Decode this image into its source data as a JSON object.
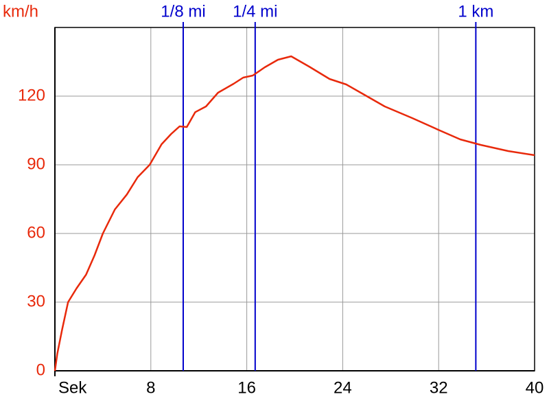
{
  "chart_data": {
    "type": "line",
    "y_label": "km/h",
    "x": [
      0,
      0.2,
      0.6,
      1.1,
      1.8,
      2.6,
      3.3,
      4.0,
      5.0,
      6.0,
      6.9,
      7.9,
      8.9,
      9.7,
      10.4,
      11.0,
      11.7,
      12.6,
      13.6,
      14.9,
      15.7,
      16.5,
      17.5,
      18.6,
      19.7,
      21.2,
      22.9,
      24.3,
      25.8,
      27.5,
      29.8,
      32.1,
      33.8,
      35.5,
      37.8,
      40
    ],
    "series": [
      {
        "name": "km/h",
        "color": "#e8290b",
        "values": [
          0,
          7.5,
          18,
          30,
          36,
          42,
          50.4,
          60,
          70.5,
          77,
          84.6,
          90,
          99,
          103.5,
          106.8,
          106.5,
          113,
          115.5,
          121.5,
          125.4,
          128.1,
          129,
          132.6,
          135.9,
          137.4,
          132.9,
          127.5,
          125.1,
          120.6,
          115.5,
          110.4,
          105,
          101.1,
          98.7,
          96,
          94.2
        ]
      }
    ],
    "markers": [
      {
        "label": "1/8 mi",
        "x": 10.7
      },
      {
        "label": "1/4 mi",
        "x": 16.7
      },
      {
        "label": "1 km",
        "x": 35.1
      }
    ],
    "marker_color": "#0000cc",
    "xlim": [
      0,
      40
    ],
    "xticks": [
      {
        "value": 0,
        "label": "Sek"
      },
      8,
      16,
      24,
      32,
      40
    ],
    "ylim": [
      0,
      150
    ],
    "yticks": [
      0,
      30,
      60,
      90,
      120
    ],
    "grid": true
  }
}
